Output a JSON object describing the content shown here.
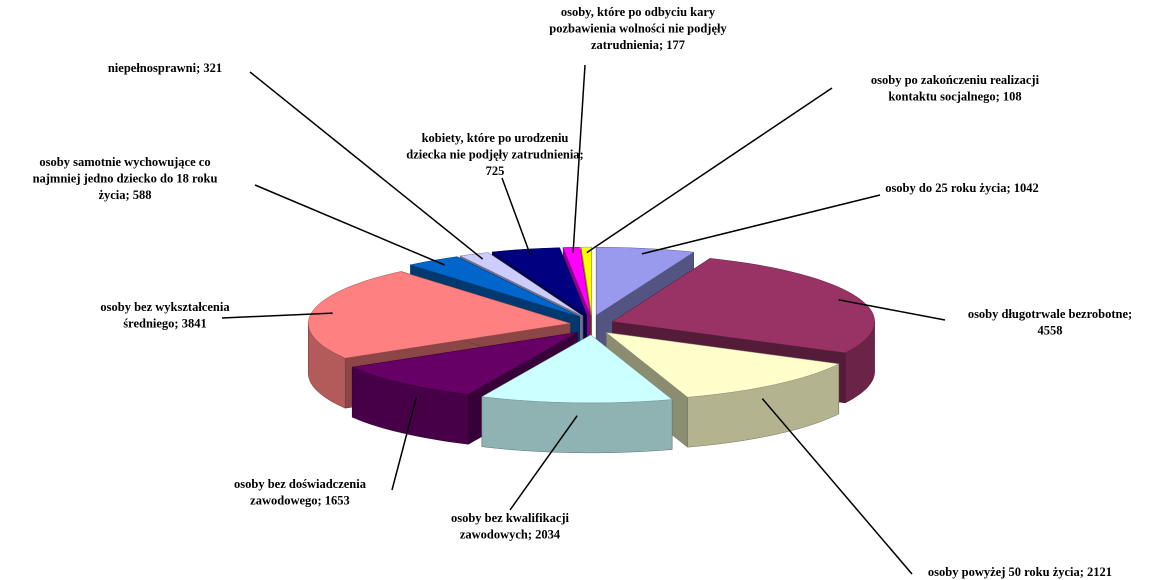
{
  "chart_data": {
    "type": "pie",
    "values": [
      1042,
      4558,
      2121,
      2034,
      1653,
      3841,
      588,
      321,
      725,
      177,
      108
    ],
    "value_labels": [
      "osoby do 25 roku życia;  1042",
      "osoby długotrwale bezrobotne;\n4558",
      "osoby powyżej 50 roku życia;  2121",
      "osoby bez kwalifikacji\nzawodowych; 2034",
      "osoby bez doświadczenia\nzawodowego; 1653",
      "osoby bez wykształcenia\nśredniego; 3841",
      "osoby samotnie wychowujące co\nnajmniej jedno dziecko do 18 roku\nżycia; 588",
      "niepełnosprawni; 321",
      "kobiety, które po urodzeniu\ndziecka nie podjęły zatrudnienia;\n725",
      "osoby, które po odbyciu kary\npozbawienia wolności nie podjęły\nzatrudnienia; 177",
      "osoby po zakończeniu realizacji\nkontaktu socjalnego; 108"
    ],
    "colors": [
      "#9999ee",
      "#993366",
      "#ffffcc",
      "#ccffff",
      "#660066",
      "#ff8080",
      "#0066cc",
      "#ccccff",
      "#000080",
      "#ff00ff",
      "#ffff00"
    ]
  }
}
